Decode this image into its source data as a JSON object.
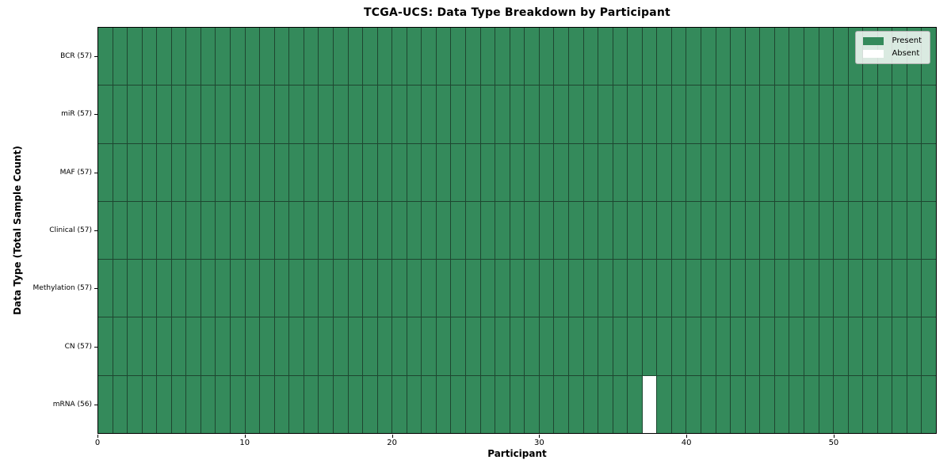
{
  "chart_data": {
    "type": "heatmap",
    "title": "TCGA-UCS: Data Type Breakdown by Participant",
    "xlabel": "Participant",
    "ylabel": "Data Type (Total Sample Count)",
    "n_participants": 57,
    "x_ticks": [
      0,
      10,
      20,
      30,
      40,
      50
    ],
    "rows": [
      {
        "label": "BCR (57)",
        "data_type": "BCR",
        "sample_count": 57,
        "absent_participants": []
      },
      {
        "label": "miR (57)",
        "data_type": "miR",
        "sample_count": 57,
        "absent_participants": []
      },
      {
        "label": "MAF (57)",
        "data_type": "MAF",
        "sample_count": 57,
        "absent_participants": []
      },
      {
        "label": "Clinical (57)",
        "data_type": "Clinical",
        "sample_count": 57,
        "absent_participants": []
      },
      {
        "label": "Methylation (57)",
        "data_type": "Methylation",
        "sample_count": 57,
        "absent_participants": []
      },
      {
        "label": "CN (57)",
        "data_type": "CN",
        "sample_count": 57,
        "absent_participants": []
      },
      {
        "label": "mRNA (56)",
        "data_type": "mRNA",
        "sample_count": 56,
        "absent_participants": [
          37
        ]
      }
    ],
    "legend": [
      {
        "label": "Present",
        "color": "#348a5b"
      },
      {
        "label": "Absent",
        "color": "#ffffff"
      }
    ],
    "colors": {
      "present": "#348a5b",
      "absent": "#ffffff",
      "grid_line": "#1e4630",
      "spine": "#000000"
    },
    "legend_position": "upper right",
    "grid": "cell-borders"
  }
}
